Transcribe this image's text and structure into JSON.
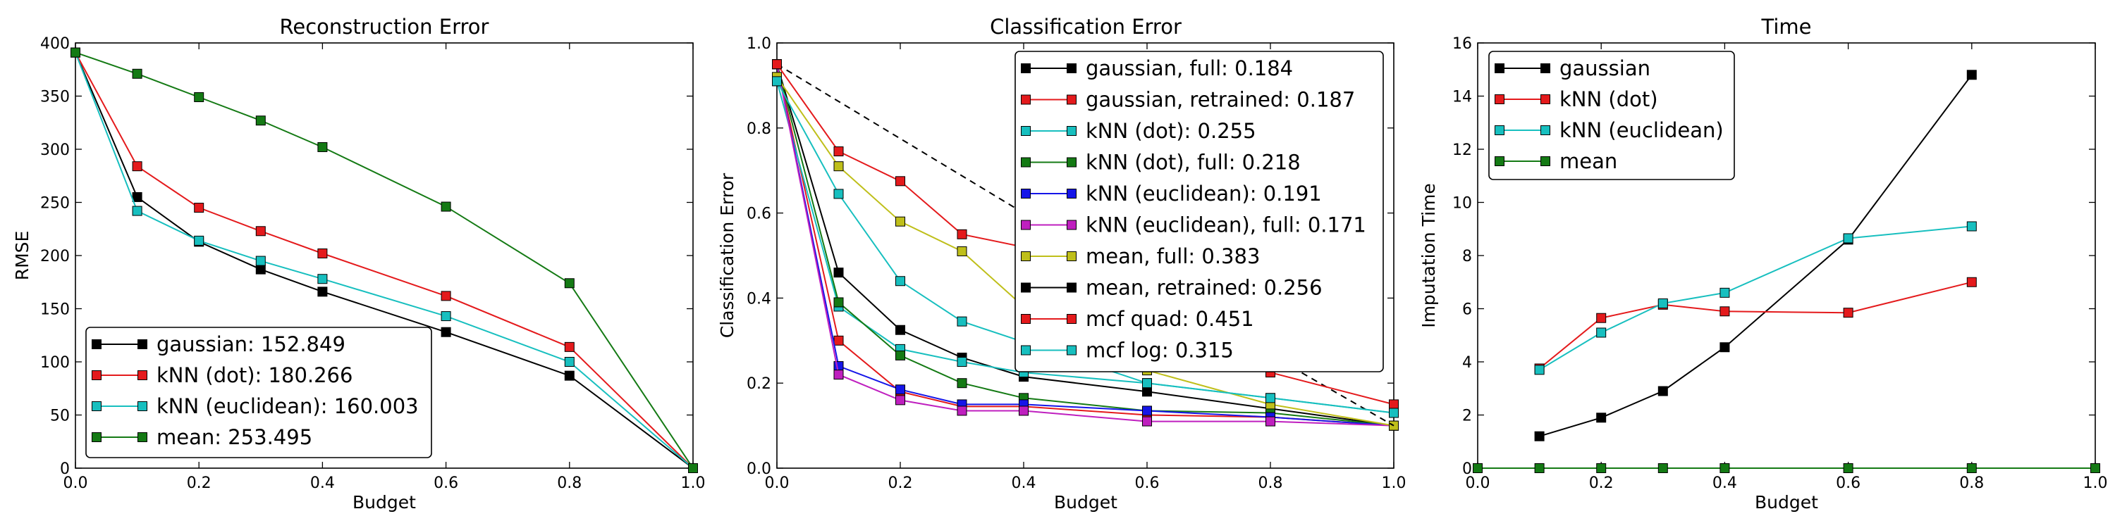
{
  "colors": {
    "black": "#000000",
    "red": "#e41a1c",
    "cyan": "#17bfbf",
    "green": "#147a14",
    "blue": "#1515e8",
    "magenta": "#bf1fbf",
    "olive": "#bfbf1a"
  },
  "chart_data": [
    {
      "type": "line",
      "title": "Reconstruction Error",
      "xlabel": "Budget",
      "ylabel": "RMSE",
      "xlim": [
        0,
        1
      ],
      "ylim": [
        0,
        400
      ],
      "xticks": [
        "0.0",
        "0.2",
        "0.4",
        "0.6",
        "0.8",
        "1.0"
      ],
      "yticks": [
        "0",
        "50",
        "100",
        "150",
        "200",
        "250",
        "300",
        "350",
        "400"
      ],
      "legend_position": "lower-left",
      "series": [
        {
          "name": "gaussian: 152.849",
          "color": "black",
          "x": [
            0,
            0.1,
            0.2,
            0.3,
            0.4,
            0.6,
            0.8,
            1.0
          ],
          "y": [
            391,
            255,
            213,
            187,
            166,
            128,
            87,
            0
          ]
        },
        {
          "name": "kNN (dot): 180.266",
          "color": "red",
          "x": [
            0,
            0.1,
            0.2,
            0.3,
            0.4,
            0.6,
            0.8,
            1.0
          ],
          "y": [
            391,
            284,
            245,
            223,
            202,
            162,
            114,
            0
          ]
        },
        {
          "name": "kNN (euclidean): 160.003",
          "color": "cyan",
          "x": [
            0,
            0.1,
            0.2,
            0.3,
            0.4,
            0.6,
            0.8,
            1.0
          ],
          "y": [
            391,
            242,
            214,
            195,
            178,
            143,
            100,
            0
          ]
        },
        {
          "name": "mean: 253.495",
          "color": "green",
          "x": [
            0,
            0.1,
            0.2,
            0.3,
            0.4,
            0.6,
            0.8,
            1.0
          ],
          "y": [
            391,
            371,
            349,
            327,
            302,
            246,
            174,
            0
          ]
        }
      ]
    },
    {
      "type": "line",
      "title": "Classification Error",
      "xlabel": "Budget",
      "ylabel": "Classification Error",
      "xlim": [
        0,
        1
      ],
      "ylim": [
        0,
        1
      ],
      "xticks": [
        "0.0",
        "0.2",
        "0.4",
        "0.6",
        "0.8",
        "1.0"
      ],
      "yticks": [
        "0.0",
        "0.2",
        "0.4",
        "0.6",
        "0.8",
        "1.0"
      ],
      "legend_position": "upper-right",
      "series": [
        {
          "name": "gaussian, full: 0.184",
          "color": "black",
          "x": [
            0,
            0.1,
            0.2,
            0.3,
            0.4,
            0.6,
            0.8,
            1.0
          ],
          "y": [
            0.95,
            0.46,
            0.325,
            0.26,
            0.215,
            0.18,
            0.14,
            0.1
          ]
        },
        {
          "name": "gaussian, retrained: 0.187",
          "color": "red",
          "x": [
            0,
            0.1,
            0.2,
            0.3,
            0.4,
            0.6,
            0.8,
            1.0
          ],
          "y": [
            0.95,
            0.3,
            0.18,
            0.145,
            0.145,
            0.125,
            0.12,
            0.1
          ]
        },
        {
          "name": "kNN (dot): 0.255",
          "color": "cyan",
          "x": [
            0,
            0.1,
            0.2,
            0.3,
            0.4,
            0.6,
            0.8,
            1.0
          ],
          "y": [
            0.91,
            0.38,
            0.28,
            0.25,
            0.225,
            0.2,
            0.165,
            0.13
          ]
        },
        {
          "name": "kNN (dot), full: 0.218",
          "color": "green",
          "x": [
            0,
            0.1,
            0.2,
            0.3,
            0.4,
            0.6,
            0.8,
            1.0
          ],
          "y": [
            0.95,
            0.39,
            0.265,
            0.2,
            0.165,
            0.135,
            0.13,
            0.1
          ]
        },
        {
          "name": "kNN (euclidean): 0.191",
          "color": "blue",
          "x": [
            0,
            0.1,
            0.2,
            0.3,
            0.4,
            0.6,
            0.8,
            1.0
          ],
          "y": [
            0.95,
            0.24,
            0.185,
            0.15,
            0.15,
            0.135,
            0.12,
            0.1
          ]
        },
        {
          "name": "kNN (euclidean), full: 0.171",
          "color": "magenta",
          "x": [
            0,
            0.1,
            0.2,
            0.3,
            0.4,
            0.6,
            0.8,
            1.0
          ],
          "y": [
            0.95,
            0.22,
            0.16,
            0.135,
            0.135,
            0.11,
            0.11,
            0.1
          ]
        },
        {
          "name": "mean, full: 0.383",
          "color": "olive",
          "x": [
            0,
            0.1,
            0.2,
            0.3,
            0.4,
            0.6,
            0.8,
            1.0
          ],
          "y": [
            0.92,
            0.71,
            0.58,
            0.51,
            0.38,
            0.23,
            0.15,
            0.1
          ]
        },
        {
          "name": "mean, retrained: 0.256",
          "color": "black",
          "dashed": true,
          "x": [
            0,
            0.4,
            1.0
          ],
          "y": [
            0.95,
            0.6,
            0.1
          ]
        },
        {
          "name": "mcf quad: 0.451",
          "color": "red",
          "x": [
            0,
            0.1,
            0.2,
            0.3,
            0.4,
            0.8,
            1.0
          ],
          "y": [
            0.95,
            0.745,
            0.675,
            0.55,
            0.52,
            0.225,
            0.15
          ]
        },
        {
          "name": "mcf log: 0.315",
          "color": "cyan",
          "x": [
            0,
            0.1,
            0.2,
            0.3,
            0.6,
            0.8,
            1.0
          ],
          "y": [
            0.91,
            0.645,
            0.44,
            0.345,
            0.2,
            0.165,
            0.13
          ]
        }
      ]
    },
    {
      "type": "line",
      "title": "Time",
      "xlabel": "Budget",
      "ylabel": "Imputation Time",
      "xlim": [
        0,
        1
      ],
      "ylim": [
        0,
        16
      ],
      "xticks": [
        "0.0",
        "0.2",
        "0.4",
        "0.6",
        "0.8",
        "1.0"
      ],
      "yticks": [
        "0",
        "2",
        "4",
        "6",
        "8",
        "10",
        "12",
        "14",
        "16"
      ],
      "legend_position": "upper-left",
      "series": [
        {
          "name": "gaussian",
          "color": "black",
          "x": [
            0.1,
            0.2,
            0.3,
            0.4,
            0.6,
            0.8
          ],
          "y": [
            1.2,
            1.9,
            2.9,
            4.55,
            8.6,
            14.8
          ]
        },
        {
          "name": "kNN (dot)",
          "color": "red",
          "x": [
            0.1,
            0.2,
            0.3,
            0.4,
            0.6,
            0.8
          ],
          "y": [
            3.75,
            5.65,
            6.15,
            5.9,
            5.85,
            7.0
          ]
        },
        {
          "name": "kNN (euclidean)",
          "color": "cyan",
          "x": [
            0.1,
            0.2,
            0.3,
            0.4,
            0.6,
            0.8
          ],
          "y": [
            3.7,
            5.1,
            6.2,
            6.6,
            8.65,
            9.1
          ]
        },
        {
          "name": "mean",
          "color": "green",
          "x": [
            0,
            0.1,
            0.2,
            0.3,
            0.4,
            0.6,
            0.8,
            1.0
          ],
          "y": [
            0,
            0,
            0,
            0,
            0,
            0,
            0,
            0
          ]
        }
      ]
    }
  ]
}
